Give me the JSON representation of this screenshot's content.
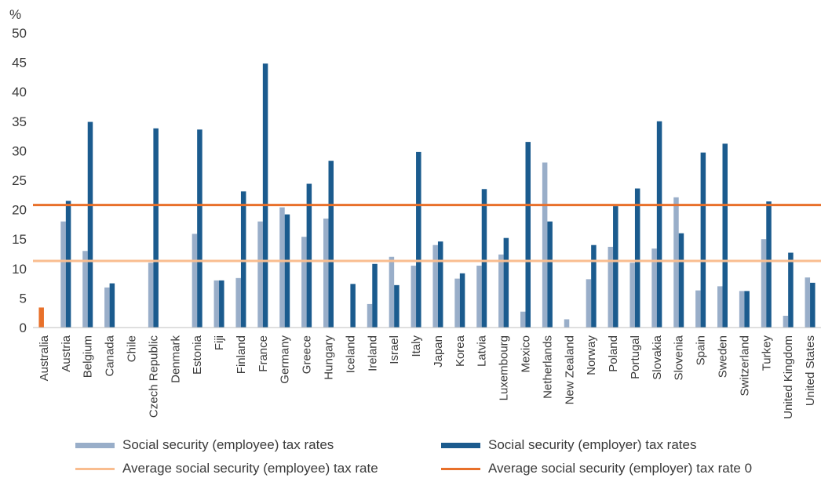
{
  "chart_data": {
    "type": "bar",
    "unit_label": "%",
    "ylim": [
      0,
      50
    ],
    "yticks": [
      0,
      5,
      10,
      15,
      20,
      25,
      30,
      35,
      40,
      45,
      50
    ],
    "categories": [
      "Australia",
      "Austria",
      "Belgium",
      "Canada",
      "Chile",
      "Czech Republic",
      "Denmark",
      "Estonia",
      "Fiji",
      "Finland",
      "France",
      "Germany",
      "Greece",
      "Hungary",
      "Iceland",
      "Ireland",
      "Israel",
      "Italy",
      "Japan",
      "Korea",
      "Latvia",
      "Luxembourg",
      "Mexico",
      "Netherlands",
      "New Zealand",
      "Norway",
      "Poland",
      "Portugal",
      "Slovakia",
      "Slovenia",
      "Spain",
      "Sweden",
      "Switzerland",
      "Turkey",
      "United Kingdom",
      "United States"
    ],
    "series": [
      {
        "name": "Social security (employee) tax rates",
        "color": "#99aec9",
        "values": [
          3.4,
          18,
          13,
          6.8,
          0,
          11,
          0,
          15.9,
          8,
          8.4,
          18,
          20.4,
          15.4,
          18.5,
          0,
          4,
          12,
          10.5,
          14,
          8.3,
          10.5,
          12.4,
          2.7,
          28,
          1.4,
          8.2,
          13.7,
          11,
          13.4,
          22.1,
          6.3,
          7,
          6.2,
          15,
          2,
          8.5
        ]
      },
      {
        "name": "Social security (employer) tax rates",
        "color": "#1b5b8e",
        "values": [
          0,
          21.5,
          34.9,
          7.5,
          0,
          33.8,
          0,
          33.6,
          8,
          23.1,
          44.8,
          19.2,
          24.4,
          28.3,
          7.4,
          10.8,
          7.2,
          29.8,
          14.6,
          9.2,
          23.5,
          15.2,
          31.5,
          18,
          0,
          14,
          20.6,
          23.6,
          35,
          16,
          29.7,
          31.2,
          6.2,
          21.4,
          12.7,
          7.6
        ]
      }
    ],
    "averages": [
      {
        "name": "Average social security (employee) tax rate",
        "value": 11.3,
        "color": "#f9bd8f"
      },
      {
        "name": "Average social security (employer) tax rate 0",
        "value": 20.8,
        "color": "#e8702a"
      }
    ],
    "highlight": {
      "category": "Australia",
      "color": "#e8702a"
    },
    "legend_position": "bottom"
  }
}
